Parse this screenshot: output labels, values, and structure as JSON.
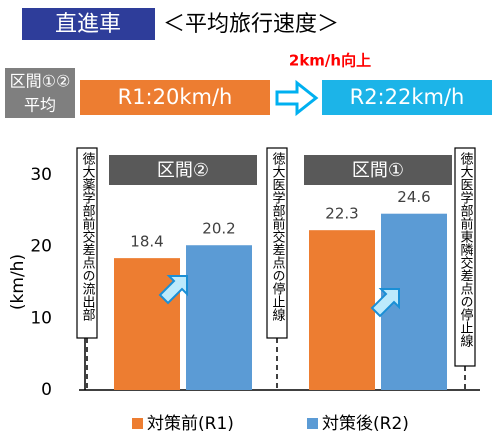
{
  "header": {
    "title": "直進車",
    "subtitle": "＜平均旅行速度＞",
    "gain": "2km/h向上",
    "section_label": [
      "区間①②",
      "平均"
    ],
    "before": "R1:20km/h",
    "after": "R2:22km/h"
  },
  "chart_data": {
    "type": "bar",
    "categories": [
      "区間②",
      "区間①"
    ],
    "ylabel": "(km/h)",
    "series": [
      {
        "name": "対策前(R1)",
        "color": "#ed7d31",
        "values": [
          18.4,
          22.3
        ]
      },
      {
        "name": "対策後(R2)",
        "color": "#5b9bd5",
        "values": [
          20.2,
          24.6
        ]
      }
    ],
    "ylim": [
      0,
      30
    ],
    "yticks": [
      0,
      10,
      20,
      30
    ],
    "grid": false,
    "boundaries": [
      "徳大薬学部前交差点の流出部",
      "徳大医学部前交差点の停止線",
      "徳大医学部前東隣交差点の停止線"
    ]
  }
}
